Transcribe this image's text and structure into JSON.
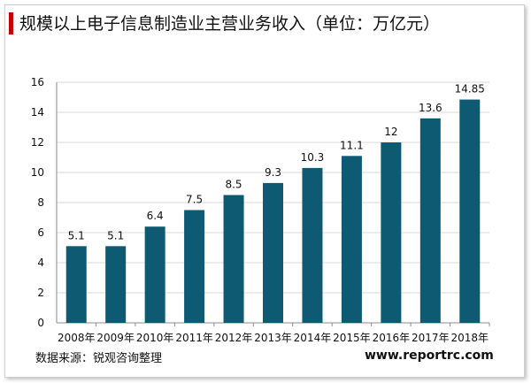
{
  "title": "规模以上电子信息制造业主营业务收入（单位：万亿元）",
  "source": "数据来源：锐观咨询整理",
  "website": "www.reportrc.com",
  "colors": {
    "accent": "#c00000",
    "bar": "#0e5a73"
  },
  "chart_data": {
    "type": "bar",
    "title": "规模以上电子信息制造业主营业务收入（单位：万亿元）",
    "categories": [
      "2008年",
      "2009年",
      "2010年",
      "2011年",
      "2012年",
      "2013年",
      "2014年",
      "2015年",
      "2016年",
      "2017年",
      "2018年"
    ],
    "values": [
      5.1,
      5.1,
      6.4,
      7.5,
      8.5,
      9.3,
      10.3,
      11.1,
      12,
      13.6,
      14.85
    ],
    "labels": [
      "5.1",
      "5.1",
      "6.4",
      "7.5",
      "8.5",
      "9.3",
      "10.3",
      "11.1",
      "12",
      "13.6",
      "14.85"
    ],
    "ylim": [
      0,
      16
    ],
    "yticks": [
      0,
      2,
      4,
      6,
      8,
      10,
      12,
      14,
      16
    ],
    "grid": true,
    "legend": "none"
  }
}
